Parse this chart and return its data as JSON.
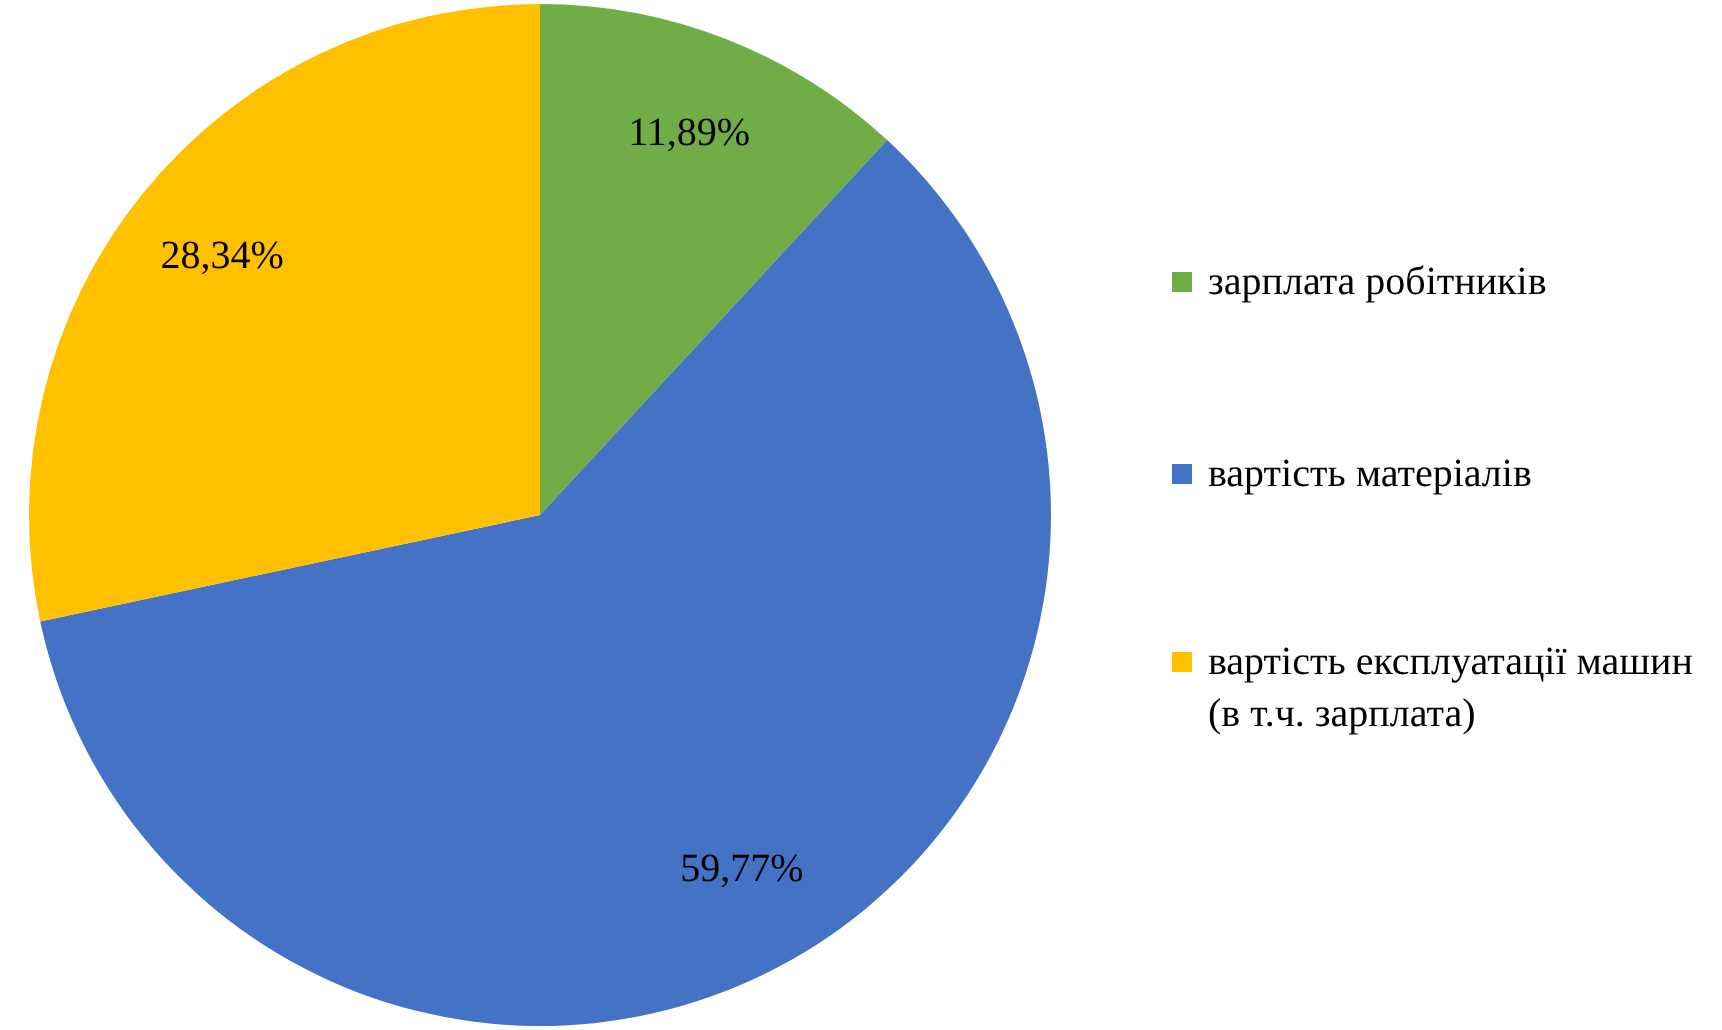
{
  "chart_data": {
    "type": "pie",
    "categories": [
      "зарплата робітників",
      "вартість матеріалів",
      "вартість експлуатації машин (в т.ч. зарплата)"
    ],
    "values": [
      11.89,
      59.77,
      28.34
    ],
    "colors": [
      "#70ad47",
      "#4472c4",
      "#ffc000"
    ],
    "value_labels": [
      "11,89%",
      "59,77%",
      "28,34%"
    ],
    "legend": "right"
  }
}
